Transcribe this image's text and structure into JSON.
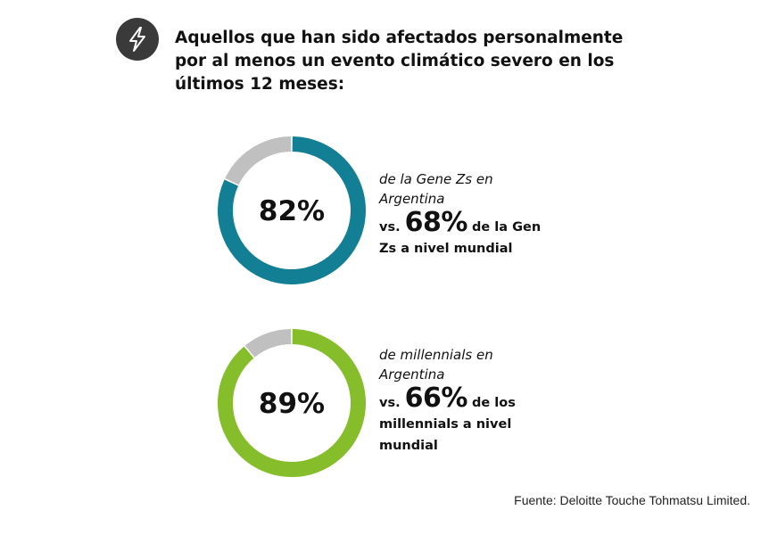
{
  "header": {
    "icon": "lightning-bolt-icon",
    "title": "Aquellos que han sido afectados personalmente por al menos un evento climático severo en los últimos 12 meses:"
  },
  "chart_data": [
    {
      "type": "pie",
      "variant": "donut",
      "value_label": "82%",
      "values": [
        82,
        18
      ],
      "colors": [
        "#137f94",
        "#c0c0c0"
      ],
      "caption": {
        "desc": "de la Gene Zs en Argentina",
        "vs": "vs.",
        "compare_value": "68%",
        "compare_text": "de la Gen Zs a nivel mundial"
      }
    },
    {
      "type": "pie",
      "variant": "donut",
      "value_label": "89%",
      "values": [
        89,
        11
      ],
      "colors": [
        "#86bd2a",
        "#c0c0c0"
      ],
      "caption": {
        "desc": "de millennials en Argentina",
        "vs": "vs.",
        "compare_value": "66%",
        "compare_text": "de los millennials a nivel mundial"
      }
    }
  ],
  "source": "Fuente: Deloitte Touche Tohmatsu Limited."
}
